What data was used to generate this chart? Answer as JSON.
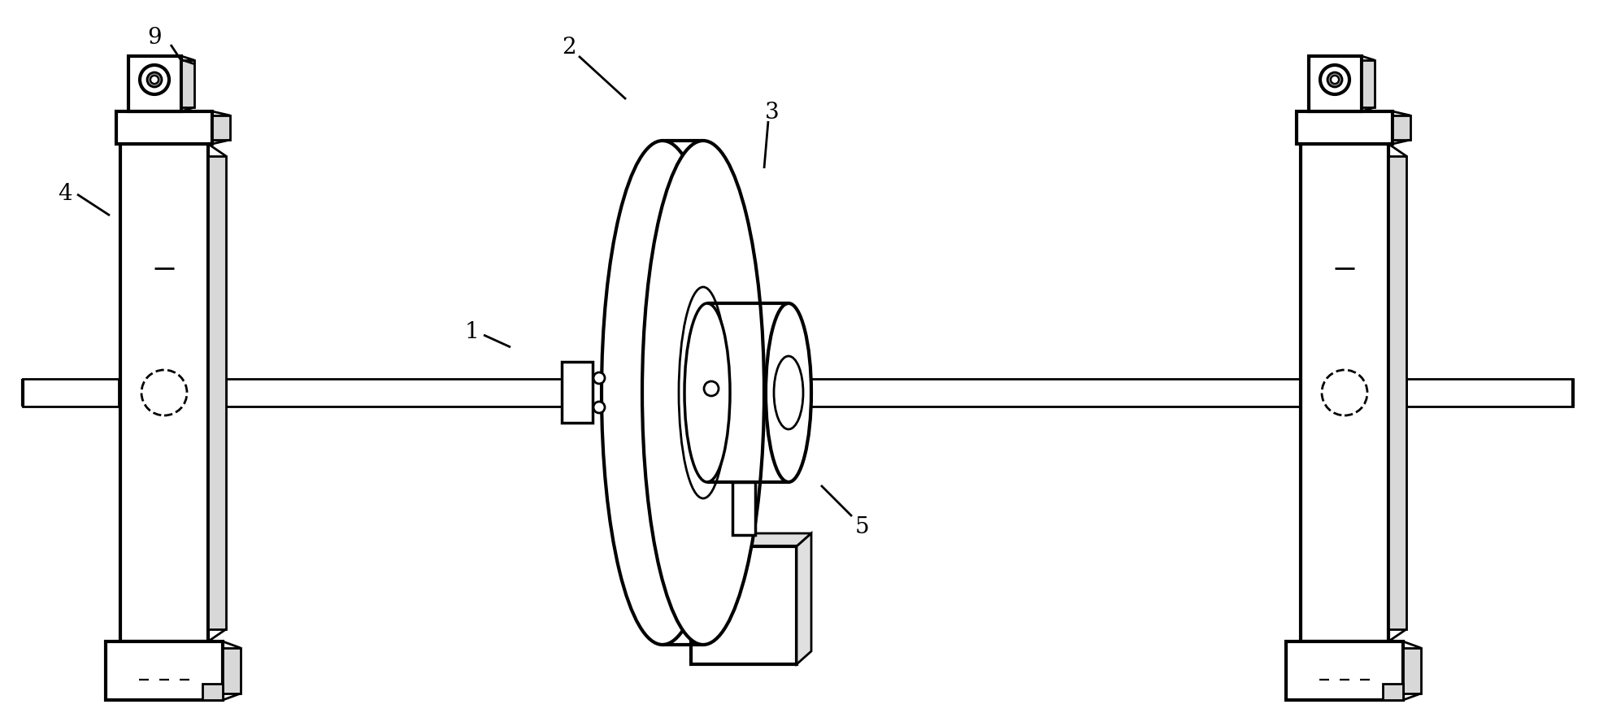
{
  "bg_color": "#ffffff",
  "lw": 2.0,
  "tlw": 3.0,
  "label_fontsize": 20,
  "figsize": [
    19.67,
    8.78
  ],
  "dpi": 100
}
